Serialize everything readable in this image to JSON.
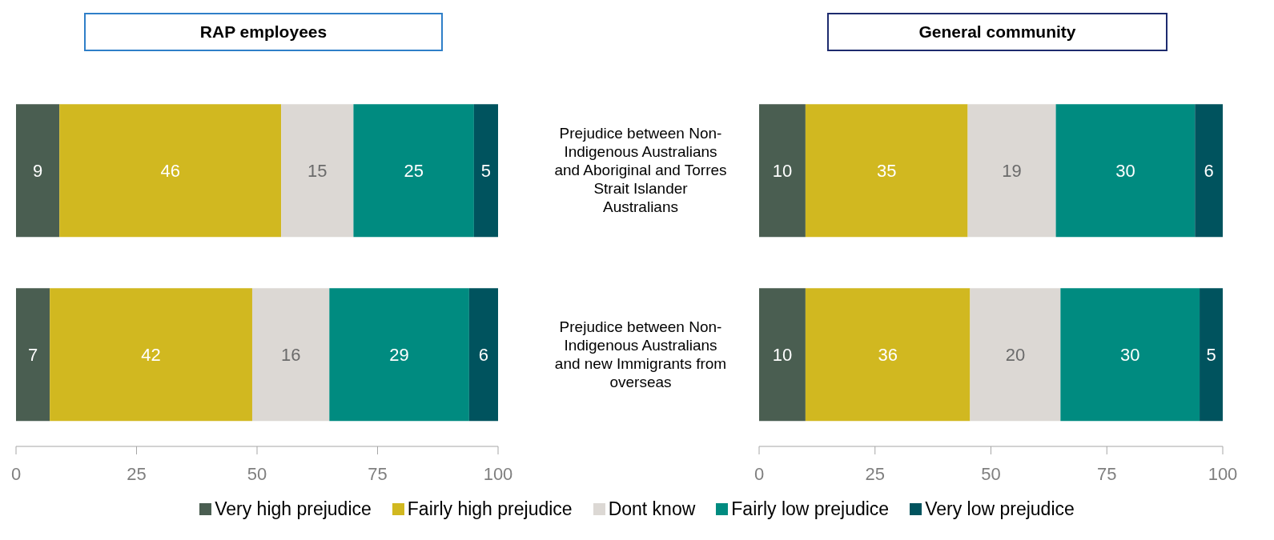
{
  "chart_data": [
    {
      "type": "bar",
      "orientation": "horizontal",
      "stacked": true,
      "title": "RAP employees",
      "categories": [
        null,
        null
      ],
      "series": [
        {
          "color": "#4a5e51",
          "values": [
            9,
            7
          ]
        },
        {
          "color": "#d1b820",
          "values": [
            46,
            42
          ]
        },
        {
          "color": "#dcd8d4",
          "values": [
            15,
            16
          ]
        },
        {
          "color": "#008b80",
          "values": [
            25,
            29
          ]
        },
        {
          "color": "#00535e",
          "values": [
            5,
            6
          ]
        }
      ],
      "xlim": [
        0,
        100
      ],
      "xticks": [
        0,
        25,
        50,
        75,
        100
      ],
      "data_labels": true,
      "tick_labels": "x",
      "grid": false
    },
    {
      "type": "bar",
      "orientation": "horizontal",
      "stacked": true,
      "title": "General community",
      "categories": [
        "Prejudice between Non-Indigenous Australians and Aboriginal and Torres Strait Islander Australians",
        "Prejudice between Non-Indigenous Australians and new Immigrants from overseas"
      ],
      "series": [
        {
          "name": "Very high prejudice",
          "color": "#4a5e51",
          "values": [
            10,
            10
          ],
          "value_labels": [
            "10",
            "10"
          ]
        },
        {
          "name": "Fairly high prejudice",
          "color": "#d1b820",
          "values": [
            35,
            35.5
          ],
          "value_labels": [
            "35",
            "36"
          ]
        },
        {
          "name": "Dont know",
          "color": "#dcd8d4",
          "values": [
            19,
            19.5
          ],
          "value_labels": [
            "19",
            "20"
          ]
        },
        {
          "name": "Fairly low prejudice",
          "color": "#008b80",
          "values": [
            30,
            30
          ],
          "value_labels": [
            "30",
            "30"
          ]
        },
        {
          "name": "Very low prejudice",
          "color": "#00535e",
          "values": [
            6,
            5
          ],
          "value_labels": [
            "6",
            "5"
          ]
        }
      ],
      "xlim": [
        0,
        100
      ],
      "xticks": [
        0,
        25,
        50,
        75,
        100
      ],
      "legend": "bottom",
      "grid": false
    }
  ]
}
